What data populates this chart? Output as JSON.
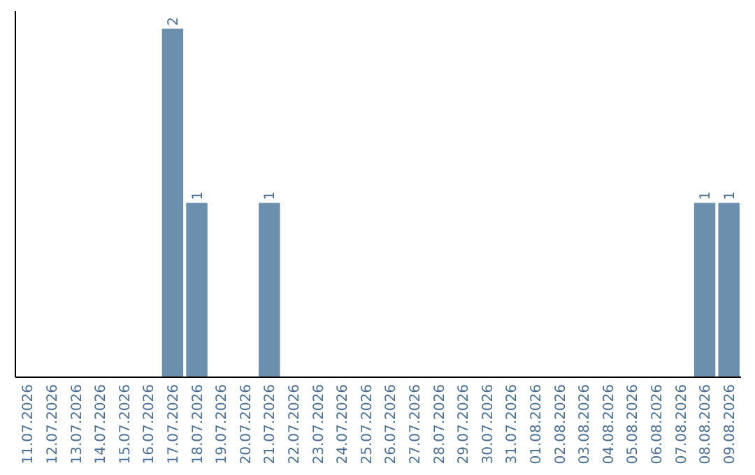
{
  "chart_data": {
    "type": "bar",
    "categories": [
      "11.07.2026",
      "12.07.2026",
      "13.07.2026",
      "14.07.2026",
      "15.07.2026",
      "16.07.2026",
      "17.07.2026",
      "18.07.2026",
      "19.07.2026",
      "20.07.2026",
      "21.07.2026",
      "22.07.2026",
      "23.07.2026",
      "24.07.2026",
      "25.07.2026",
      "26.07.2026",
      "27.07.2026",
      "28.07.2026",
      "29.07.2026",
      "30.07.2026",
      "31.07.2026",
      "01.08.2026",
      "02.08.2026",
      "03.08.2026",
      "04.08.2026",
      "05.08.2026",
      "06.08.2026",
      "07.08.2026",
      "08.08.2026",
      "09.08.2026"
    ],
    "values": [
      0,
      0,
      0,
      0,
      0,
      0,
      2,
      1,
      0,
      0,
      1,
      0,
      0,
      0,
      0,
      0,
      0,
      0,
      0,
      0,
      0,
      0,
      0,
      0,
      0,
      0,
      0,
      0,
      1,
      1
    ],
    "value_labels": [
      null,
      null,
      null,
      null,
      null,
      null,
      "2",
      "1",
      null,
      null,
      "1",
      null,
      null,
      null,
      null,
      null,
      null,
      null,
      null,
      null,
      null,
      null,
      null,
      null,
      null,
      null,
      null,
      null,
      "1",
      "1"
    ],
    "color": "#6d8fae"
  }
}
